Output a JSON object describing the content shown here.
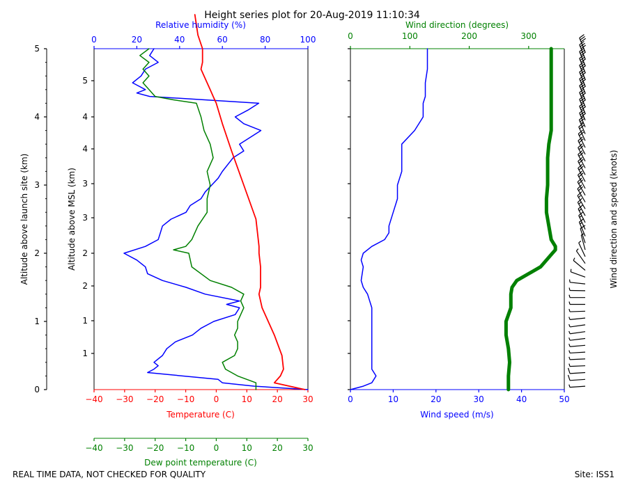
{
  "chart_data": {
    "type": "line",
    "title": "Height series plot for 20-Aug-2019 11:10:34",
    "footer_left": "REAL TIME DATA, NOT CHECKED FOR QUALITY",
    "footer_right": "Site: ISS1",
    "colors": {
      "temperature": "#ff0000",
      "dewpoint": "#008000",
      "humidity": "#0000ff",
      "wind_speed": "#0000ff",
      "wind_dir": "#008000",
      "axes": "#000000"
    },
    "left_panel": {
      "alt_launch_label": "Altitude above launch site (km)",
      "alt_launch_ticks": [
        "0",
        "1",
        "2",
        "3",
        "4",
        "5"
      ],
      "alt_msl_label": "Altitude above MSL (km)",
      "alt_msl_ticks": [
        "1",
        "1",
        "2",
        "2",
        "3",
        "3",
        "4",
        "4",
        "5"
      ],
      "temperature": {
        "label": "Temperature (C)",
        "xlim": [
          -40,
          30
        ],
        "ticks": [
          "−40",
          "−30",
          "−20",
          "−10",
          "0",
          "10",
          "20",
          "30"
        ],
        "altitude_km": [
          0,
          0.1,
          0.2,
          0.3,
          0.5,
          0.8,
          1.0,
          1.2,
          1.4,
          1.5,
          1.8,
          2.0,
          2.1,
          2.5,
          3.0,
          3.5,
          3.9,
          4.2,
          4.3,
          4.4,
          4.6,
          4.7,
          4.8,
          5.0,
          5.2,
          5.5
        ],
        "values": [
          29.0,
          19.0,
          21.0,
          22.0,
          21.5,
          19.0,
          17.0,
          15.0,
          14.0,
          14.5,
          14.5,
          14.0,
          14.0,
          13.0,
          9.0,
          5.0,
          2.0,
          0.0,
          -1.0,
          -2.0,
          -4.0,
          -5.0,
          -4.5,
          -4.5,
          -6.0,
          -7.0
        ]
      },
      "dewpoint": {
        "label": "Dew point temperature (C)",
        "xlim": [
          -40,
          30
        ],
        "ticks": [
          "−40",
          "−30",
          "−20",
          "−10",
          "0",
          "10",
          "20",
          "30"
        ],
        "altitude_km": [
          0,
          0.1,
          0.2,
          0.3,
          0.4,
          0.5,
          0.6,
          0.7,
          0.8,
          0.9,
          1.0,
          1.1,
          1.2,
          1.3,
          1.4,
          1.5,
          1.6,
          1.8,
          2.0,
          2.05,
          2.1,
          2.2,
          2.4,
          2.6,
          2.8,
          3.0,
          3.2,
          3.4,
          3.6,
          3.8,
          4.0,
          4.2,
          4.25,
          4.3,
          4.4,
          4.5,
          4.6,
          4.7,
          4.8,
          4.9,
          5.0
        ],
        "values": [
          13.0,
          13.0,
          7.0,
          3.0,
          2.0,
          6.0,
          7.0,
          7.0,
          6.0,
          7.0,
          7.0,
          8.0,
          9.0,
          8.0,
          9.0,
          5.0,
          -2.0,
          -8.0,
          -9.0,
          -14.0,
          -10.0,
          -8.0,
          -6.0,
          -3.0,
          -3.0,
          -2.0,
          -3.0,
          -1.0,
          -2.0,
          -4.0,
          -5.0,
          -6.5,
          -14.0,
          -20.0,
          -22.0,
          -24.0,
          -22.0,
          -24.0,
          -22.0,
          -25.0,
          -22.0
        ]
      },
      "humidity": {
        "label": "Relative humidity (%)",
        "xlim": [
          0,
          100
        ],
        "ticks": [
          "0",
          "20",
          "40",
          "60",
          "80",
          "100"
        ],
        "altitude_km": [
          0,
          0.05,
          0.1,
          0.15,
          0.25,
          0.3,
          0.35,
          0.4,
          0.5,
          0.6,
          0.7,
          0.8,
          0.9,
          1.0,
          1.1,
          1.2,
          1.25,
          1.3,
          1.4,
          1.5,
          1.6,
          1.7,
          1.8,
          1.9,
          2.0,
          2.1,
          2.2,
          2.3,
          2.4,
          2.5,
          2.6,
          2.7,
          2.8,
          2.9,
          3.0,
          3.1,
          3.2,
          3.4,
          3.5,
          3.6,
          3.8,
          3.9,
          4.0,
          4.1,
          4.2,
          4.3,
          4.35,
          4.4,
          4.5,
          4.6,
          4.7,
          4.8,
          4.9,
          5.0
        ],
        "values": [
          100,
          75,
          60,
          58,
          25,
          28,
          30,
          28,
          32,
          34,
          38,
          46,
          50,
          56,
          66,
          68,
          62,
          68,
          52,
          43,
          32,
          25,
          24,
          20,
          14,
          24,
          30,
          31,
          32,
          36,
          43,
          45,
          50,
          52,
          55,
          58,
          60,
          65,
          70,
          68,
          78,
          70,
          66,
          72,
          77,
          26,
          20,
          24,
          18,
          22,
          24,
          30,
          26,
          28
        ]
      }
    },
    "right_panel": {
      "wind_speed": {
        "label": "Wind speed (m/s)",
        "xlim": [
          0,
          50
        ],
        "ticks": [
          "0",
          "10",
          "20",
          "30",
          "40",
          "50"
        ],
        "altitude_km": [
          0,
          0.05,
          0.1,
          0.2,
          0.3,
          0.5,
          0.7,
          0.9,
          1.0,
          1.2,
          1.4,
          1.5,
          1.6,
          1.8,
          1.9,
          2.0,
          2.1,
          2.2,
          2.3,
          2.4,
          2.6,
          2.8,
          3.0,
          3.2,
          3.4,
          3.5,
          3.6,
          3.8,
          4.0,
          4.2,
          4.3,
          4.5,
          4.7,
          4.9,
          5.0
        ],
        "values": [
          0,
          3,
          5,
          6,
          5,
          5,
          5,
          5,
          5,
          5,
          4,
          3,
          2.5,
          3,
          2.5,
          3,
          5,
          8,
          9,
          9,
          10,
          11,
          11,
          12,
          12,
          12,
          12,
          15,
          17,
          17,
          17.5,
          17.5,
          18,
          18,
          18
        ]
      },
      "wind_direction": {
        "label": "Wind direction (degrees)",
        "xlim": [
          0,
          360
        ],
        "ticks": [
          "0",
          "100",
          "200",
          "300"
        ],
        "altitude_km": [
          0,
          0.2,
          0.4,
          0.6,
          0.8,
          1.0,
          1.2,
          1.3,
          1.4,
          1.5,
          1.6,
          1.8,
          2.0,
          2.05,
          2.1,
          2.2,
          2.3,
          2.4,
          2.5,
          2.6,
          2.8,
          3.0,
          3.2,
          3.4,
          3.6,
          3.8,
          4.0,
          4.2,
          4.4,
          4.6,
          4.8,
          5.0
        ],
        "values": [
          266,
          266,
          268,
          266,
          262,
          262,
          270,
          270,
          270,
          272,
          280,
          320,
          340,
          345,
          345,
          338,
          336,
          334,
          332,
          330,
          330,
          332,
          332,
          332,
          334,
          338,
          338,
          338,
          338,
          338,
          338,
          338
        ]
      },
      "barbs_label": "Wind direction and speed (knots)"
    }
  }
}
